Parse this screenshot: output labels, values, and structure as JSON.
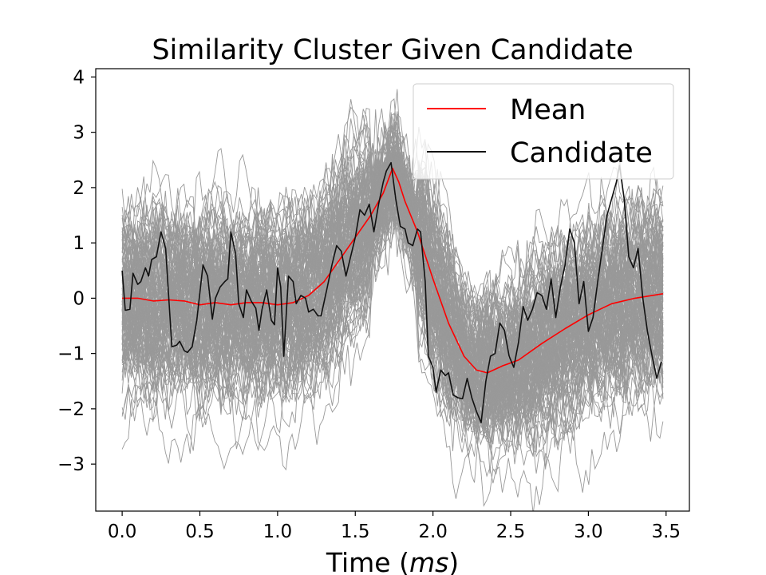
{
  "chart_data": {
    "type": "line",
    "title": "Similarity Cluster Given Candidate",
    "xlabel": "Time (",
    "xlabel_unit": "ms",
    "xlabel_close": ")",
    "ylabel": "",
    "xlim": [
      -0.17,
      3.65
    ],
    "ylim": [
      -3.85,
      4.15
    ],
    "xticks": [
      0.0,
      0.5,
      1.0,
      1.5,
      2.0,
      2.5,
      3.0,
      3.5
    ],
    "xtick_labels": [
      "0.0",
      "0.5",
      "1.0",
      "1.5",
      "2.0",
      "2.5",
      "3.0",
      "3.5"
    ],
    "yticks": [
      -3,
      -2,
      -1,
      0,
      1,
      2,
      3,
      4
    ],
    "ytick_labels": [
      "−3",
      "−2",
      "−1",
      "0",
      "1",
      "2",
      "3",
      "4"
    ],
    "grid": false,
    "legend_position": "top-right",
    "series": [
      {
        "name": "Mean",
        "color": "#ff0000",
        "points": [
          [
            0.0,
            0.0
          ],
          [
            0.1,
            0.0
          ],
          [
            0.2,
            -0.05
          ],
          [
            0.3,
            -0.03
          ],
          [
            0.4,
            -0.05
          ],
          [
            0.5,
            -0.12
          ],
          [
            0.6,
            -0.08
          ],
          [
            0.7,
            -0.12
          ],
          [
            0.8,
            -0.08
          ],
          [
            0.9,
            -0.08
          ],
          [
            1.0,
            -0.12
          ],
          [
            1.1,
            -0.08
          ],
          [
            1.2,
            0.05
          ],
          [
            1.3,
            0.3
          ],
          [
            1.4,
            0.7
          ],
          [
            1.5,
            1.1
          ],
          [
            1.6,
            1.5
          ],
          [
            1.68,
            1.9
          ],
          [
            1.74,
            2.35
          ],
          [
            1.78,
            2.1
          ],
          [
            1.82,
            1.75
          ],
          [
            1.9,
            1.2
          ],
          [
            2.0,
            0.35
          ],
          [
            2.1,
            -0.45
          ],
          [
            2.2,
            -1.05
          ],
          [
            2.28,
            -1.3
          ],
          [
            2.35,
            -1.35
          ],
          [
            2.45,
            -1.22
          ],
          [
            2.55,
            -1.12
          ],
          [
            2.7,
            -0.82
          ],
          [
            2.85,
            -0.55
          ],
          [
            3.0,
            -0.3
          ],
          [
            3.15,
            -0.1
          ],
          [
            3.3,
            0.0
          ],
          [
            3.48,
            0.08
          ]
        ]
      },
      {
        "name": "Candidate",
        "color": "#111111",
        "points": [
          [
            0.0,
            0.5
          ],
          [
            0.02,
            -0.22
          ],
          [
            0.05,
            -0.2
          ],
          [
            0.07,
            0.45
          ],
          [
            0.1,
            0.25
          ],
          [
            0.12,
            0.3
          ],
          [
            0.15,
            0.55
          ],
          [
            0.17,
            0.4
          ],
          [
            0.19,
            0.7
          ],
          [
            0.22,
            0.75
          ],
          [
            0.25,
            1.2
          ],
          [
            0.28,
            0.9
          ],
          [
            0.32,
            -0.88
          ],
          [
            0.35,
            -0.85
          ],
          [
            0.37,
            -0.78
          ],
          [
            0.4,
            -0.95
          ],
          [
            0.42,
            -0.98
          ],
          [
            0.45,
            -0.88
          ],
          [
            0.48,
            -0.4
          ],
          [
            0.5,
            0.1
          ],
          [
            0.52,
            0.6
          ],
          [
            0.55,
            0.4
          ],
          [
            0.58,
            -0.38
          ],
          [
            0.6,
            0.0
          ],
          [
            0.63,
            0.2
          ],
          [
            0.66,
            0.3
          ],
          [
            0.68,
            0.35
          ],
          [
            0.7,
            1.2
          ],
          [
            0.73,
            0.8
          ],
          [
            0.75,
            -0.1
          ],
          [
            0.78,
            -0.35
          ],
          [
            0.8,
            0.15
          ],
          [
            0.83,
            -0.05
          ],
          [
            0.86,
            -0.18
          ],
          [
            0.88,
            -0.58
          ],
          [
            0.9,
            -0.2
          ],
          [
            0.93,
            0.15
          ],
          [
            0.96,
            -0.4
          ],
          [
            0.98,
            -0.48
          ],
          [
            1.0,
            0.55
          ],
          [
            1.02,
            0.2
          ],
          [
            1.04,
            -1.05
          ],
          [
            1.07,
            0.4
          ],
          [
            1.1,
            0.3
          ],
          [
            1.12,
            -0.1
          ],
          [
            1.15,
            0.05
          ],
          [
            1.18,
            0.0
          ],
          [
            1.2,
            -0.25
          ],
          [
            1.23,
            -0.2
          ],
          [
            1.26,
            -0.32
          ],
          [
            1.28,
            -0.32
          ],
          [
            1.32,
            0.2
          ],
          [
            1.35,
            0.6
          ],
          [
            1.38,
            0.95
          ],
          [
            1.41,
            0.85
          ],
          [
            1.44,
            0.4
          ],
          [
            1.47,
            0.75
          ],
          [
            1.5,
            1.1
          ],
          [
            1.53,
            1.6
          ],
          [
            1.56,
            1.5
          ],
          [
            1.59,
            1.7
          ],
          [
            1.62,
            1.2
          ],
          [
            1.65,
            1.7
          ],
          [
            1.68,
            2.1
          ],
          [
            1.7,
            2.3
          ],
          [
            1.73,
            2.45
          ],
          [
            1.76,
            1.8
          ],
          [
            1.79,
            1.3
          ],
          [
            1.82,
            1.25
          ],
          [
            1.84,
            1.0
          ],
          [
            1.87,
            0.95
          ],
          [
            1.9,
            1.25
          ],
          [
            1.92,
            1.2
          ],
          [
            1.95,
            0.3
          ],
          [
            1.97,
            -1.05
          ],
          [
            2.0,
            -1.25
          ],
          [
            2.02,
            -1.7
          ],
          [
            2.05,
            -1.3
          ],
          [
            2.08,
            -1.4
          ],
          [
            2.1,
            -1.35
          ],
          [
            2.13,
            -1.75
          ],
          [
            2.16,
            -1.8
          ],
          [
            2.19,
            -1.82
          ],
          [
            2.22,
            -1.45
          ],
          [
            2.25,
            -1.8
          ],
          [
            2.28,
            -2.05
          ],
          [
            2.31,
            -2.25
          ],
          [
            2.34,
            -1.5
          ],
          [
            2.37,
            -1.05
          ],
          [
            2.4,
            -1.0
          ],
          [
            2.43,
            -0.45
          ],
          [
            2.46,
            -0.58
          ],
          [
            2.49,
            -1.05
          ],
          [
            2.52,
            -1.25
          ],
          [
            2.55,
            -0.8
          ],
          [
            2.58,
            -0.15
          ],
          [
            2.61,
            -0.4
          ],
          [
            2.64,
            -0.2
          ],
          [
            2.67,
            0.1
          ],
          [
            2.7,
            0.05
          ],
          [
            2.73,
            -0.2
          ],
          [
            2.76,
            0.35
          ],
          [
            2.79,
            -0.35
          ],
          [
            2.82,
            0.2
          ],
          [
            2.85,
            0.6
          ],
          [
            2.88,
            1.25
          ],
          [
            2.91,
            1.0
          ],
          [
            2.94,
            -0.1
          ],
          [
            2.97,
            0.3
          ],
          [
            3.0,
            -0.6
          ],
          [
            3.03,
            -0.35
          ],
          [
            3.06,
            0.3
          ],
          [
            3.09,
            0.9
          ],
          [
            3.12,
            1.5
          ],
          [
            3.15,
            1.8
          ],
          [
            3.18,
            2.1
          ],
          [
            3.2,
            2.4
          ],
          [
            3.23,
            1.8
          ],
          [
            3.26,
            0.75
          ],
          [
            3.29,
            0.55
          ],
          [
            3.32,
            0.9
          ],
          [
            3.35,
            0.0
          ],
          [
            3.38,
            -0.6
          ],
          [
            3.41,
            -1.05
          ],
          [
            3.44,
            -1.45
          ],
          [
            3.47,
            -1.15
          ]
        ]
      }
    ],
    "background_traces": {
      "color": "#999999",
      "description_count": "many"
    }
  }
}
